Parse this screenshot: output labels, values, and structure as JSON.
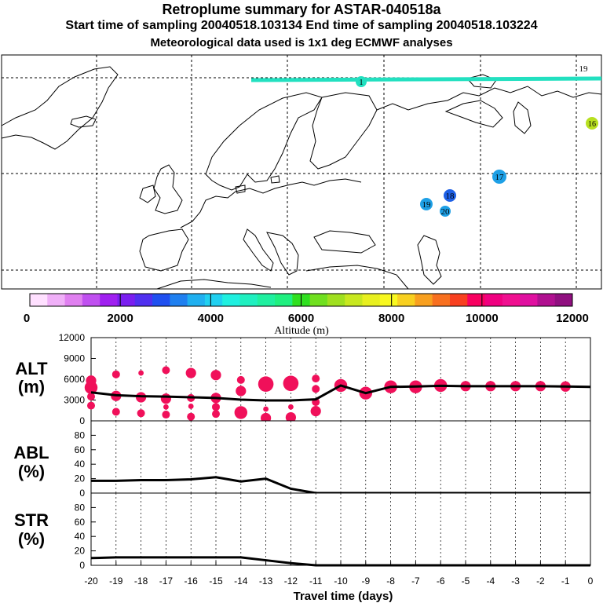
{
  "header": {
    "title": "Retroplume summary for ASTAR-040518a",
    "sampling": "Start time of sampling 20040518.103134      End time of sampling 20040518.103224",
    "met": "Meteorological data used is 1x1 deg ECMWF analyses"
  },
  "map": {
    "labels": [
      {
        "text": "1",
        "color": "#22e0c0"
      },
      {
        "text": "16",
        "color": "#b8e020"
      },
      {
        "text": "17",
        "color": "#1ea0e6"
      },
      {
        "text": "18",
        "color": "#1e60e6"
      },
      {
        "text": "19",
        "color": "#1ea0e6"
      },
      {
        "text": "20",
        "color": "#1ea0e6"
      },
      {
        "text": "19",
        "color": "#d0e020"
      }
    ]
  },
  "colorbar": {
    "label": "Altitude (m)",
    "ticks": [
      "0",
      "2000",
      "4000",
      "6000",
      "8000",
      "10000",
      "12000"
    ],
    "colors": [
      "#ffe0ff",
      "#f0b0f8",
      "#e080f0",
      "#c050f0",
      "#a020f0",
      "#7a1ef0",
      "#5030f0",
      "#2050f0",
      "#2080f0",
      "#20b0f0",
      "#20d0f0",
      "#20f0e0",
      "#20f0c0",
      "#20f0a0",
      "#20f080",
      "#30e020",
      "#70e020",
      "#a0e020",
      "#c8e820",
      "#e8f020",
      "#f8f820",
      "#f8d020",
      "#f8a020",
      "#f87020",
      "#f84020",
      "#f80060",
      "#f00080",
      "#f01090",
      "#e010a0",
      "#b01090",
      "#901080"
    ]
  },
  "chart_data": [
    {
      "type": "line",
      "panel": "ALT",
      "ylabel": "ALT (m)",
      "ylim": [
        0,
        12000
      ],
      "yticks": [
        "0",
        "3000",
        "6000",
        "9000",
        "12000"
      ],
      "x": [
        -20,
        -19,
        -18,
        -17,
        -16,
        -15,
        -14,
        -13,
        -12,
        -11,
        -10,
        -9,
        -8,
        -7,
        -6,
        -5,
        -4,
        -3,
        -2,
        -1,
        0
      ],
      "series": [
        {
          "name": "mean altitude",
          "values": [
            4100,
            3700,
            3550,
            3500,
            3400,
            3300,
            3050,
            2950,
            2950,
            3100,
            5100,
            4000,
            4900,
            4950,
            5050,
            5000,
            5000,
            5000,
            5000,
            4950,
            4900
          ]
        }
      ],
      "clusters": [
        {
          "x": -20,
          "y": 5800,
          "size": 3
        },
        {
          "x": -20,
          "y": 4800,
          "size": 4
        },
        {
          "x": -20,
          "y": 3500,
          "size": 2
        },
        {
          "x": -20,
          "y": 2200,
          "size": 2
        },
        {
          "x": -19,
          "y": 6700,
          "size": 2
        },
        {
          "x": -19,
          "y": 3600,
          "size": 3
        },
        {
          "x": -19,
          "y": 1300,
          "size": 2
        },
        {
          "x": -18,
          "y": 6900,
          "size": 1
        },
        {
          "x": -18,
          "y": 3400,
          "size": 3
        },
        {
          "x": -18,
          "y": 1100,
          "size": 2
        },
        {
          "x": -17,
          "y": 7300,
          "size": 2
        },
        {
          "x": -17,
          "y": 3200,
          "size": 3
        },
        {
          "x": -17,
          "y": 2000,
          "size": 1
        },
        {
          "x": -17,
          "y": 900,
          "size": 2
        },
        {
          "x": -16,
          "y": 6900,
          "size": 3
        },
        {
          "x": -16,
          "y": 3300,
          "size": 2
        },
        {
          "x": -16,
          "y": 2100,
          "size": 1
        },
        {
          "x": -16,
          "y": 600,
          "size": 2
        },
        {
          "x": -15,
          "y": 6600,
          "size": 3
        },
        {
          "x": -15,
          "y": 3300,
          "size": 3
        },
        {
          "x": -15,
          "y": 2000,
          "size": 2
        },
        {
          "x": -15,
          "y": 1000,
          "size": 2
        },
        {
          "x": -14,
          "y": 5900,
          "size": 2
        },
        {
          "x": -14,
          "y": 4300,
          "size": 3
        },
        {
          "x": -14,
          "y": 1200,
          "size": 4
        },
        {
          "x": -13,
          "y": 5300,
          "size": 5
        },
        {
          "x": -13,
          "y": 1700,
          "size": 1
        },
        {
          "x": -13,
          "y": 400,
          "size": 3
        },
        {
          "x": -12,
          "y": 5400,
          "size": 5
        },
        {
          "x": -12,
          "y": 2000,
          "size": 1
        },
        {
          "x": -12,
          "y": 500,
          "size": 3
        },
        {
          "x": -11,
          "y": 6100,
          "size": 2
        },
        {
          "x": -11,
          "y": 4600,
          "size": 2
        },
        {
          "x": -11,
          "y": 2700,
          "size": 2
        },
        {
          "x": -11,
          "y": 1400,
          "size": 3
        },
        {
          "x": -10,
          "y": 5100,
          "size": 4
        },
        {
          "x": -9,
          "y": 4000,
          "size": 4
        },
        {
          "x": -8,
          "y": 4900,
          "size": 4
        },
        {
          "x": -7,
          "y": 4900,
          "size": 4
        },
        {
          "x": -6,
          "y": 5100,
          "size": 4
        },
        {
          "x": -5,
          "y": 5000,
          "size": 3
        },
        {
          "x": -4,
          "y": 5000,
          "size": 3
        },
        {
          "x": -3,
          "y": 5000,
          "size": 3
        },
        {
          "x": -2,
          "y": 5000,
          "size": 3
        },
        {
          "x": -1,
          "y": 4950,
          "size": 3
        }
      ]
    },
    {
      "type": "line",
      "panel": "ABL",
      "ylabel": "ABL (%)",
      "ylim": [
        0,
        100
      ],
      "yticks": [
        "0",
        "20",
        "40",
        "60",
        "80"
      ],
      "x": [
        -20,
        -19,
        -18,
        -17,
        -16,
        -15,
        -14,
        -13,
        -12,
        -11,
        -10,
        -9,
        -8,
        -7,
        -6,
        -5,
        -4,
        -3,
        -2,
        -1,
        0
      ],
      "series": [
        {
          "name": "ABL fraction",
          "values": [
            17,
            17,
            18,
            18,
            19,
            22,
            16,
            20,
            6,
            0,
            0,
            0,
            0,
            0,
            0,
            0,
            0,
            0,
            0,
            0,
            0
          ]
        }
      ]
    },
    {
      "type": "line",
      "panel": "STR",
      "ylabel": "STR (%)",
      "ylim": [
        0,
        100
      ],
      "yticks": [
        "0",
        "20",
        "40",
        "60",
        "80"
      ],
      "xlabel": "Travel time (days)",
      "xticks": [
        "-20",
        "-19",
        "-18",
        "-17",
        "-16",
        "-15",
        "-14",
        "-13",
        "-12",
        "-11",
        "-10",
        "-9",
        "-8",
        "-7",
        "-6",
        "-5",
        "-4",
        "-3",
        "-2",
        "-1",
        "0"
      ],
      "x": [
        -20,
        -19,
        -18,
        -17,
        -16,
        -15,
        -14,
        -13,
        -12,
        -11,
        -10,
        -9,
        -8,
        -7,
        -6,
        -5,
        -4,
        -3,
        -2,
        -1,
        0
      ],
      "series": [
        {
          "name": "stratospheric fraction",
          "values": [
            10,
            11,
            11,
            11,
            11,
            11,
            11,
            7,
            3,
            0,
            0,
            0,
            0,
            0,
            0,
            0,
            0,
            0,
            0,
            0,
            0
          ]
        }
      ]
    }
  ]
}
